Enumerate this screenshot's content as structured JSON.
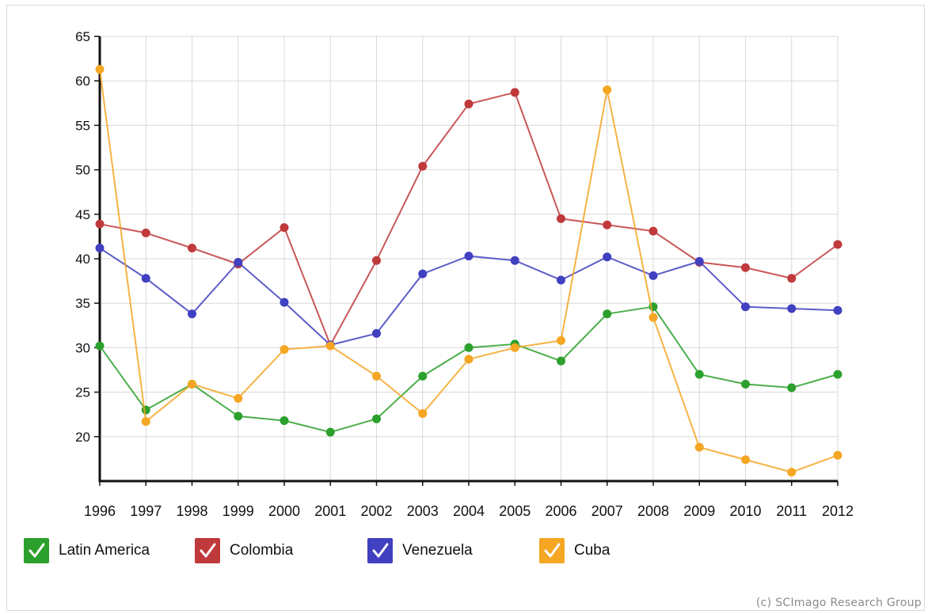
{
  "chart_data": {
    "type": "line",
    "x": [
      "1996",
      "1997",
      "1998",
      "1999",
      "2000",
      "2001",
      "2002",
      "2003",
      "2004",
      "2005",
      "2006",
      "2007",
      "2008",
      "2009",
      "2010",
      "2011",
      "2012"
    ],
    "ylim": [
      15,
      65
    ],
    "yticks": [
      20,
      25,
      30,
      35,
      40,
      45,
      50,
      55,
      60,
      65
    ],
    "grid": true,
    "legend_placement": "bottom",
    "series": [
      {
        "name": "Latin America",
        "color": "#2ca02c",
        "values": [
          30.2,
          23.0,
          25.9,
          22.3,
          21.8,
          20.5,
          22.0,
          26.8,
          30.0,
          30.4,
          28.5,
          33.8,
          34.6,
          27.0,
          25.9,
          25.5,
          27.0
        ]
      },
      {
        "name": "Colombia",
        "color": "#c0393b",
        "values": [
          43.9,
          42.9,
          41.2,
          39.4,
          43.5,
          30.3,
          39.8,
          50.4,
          57.4,
          58.7,
          44.5,
          43.8,
          43.1,
          39.6,
          39.0,
          37.8,
          41.6
        ]
      },
      {
        "name": "Venezuela",
        "color": "#4040c0",
        "values": [
          41.2,
          37.8,
          33.8,
          39.6,
          35.1,
          30.3,
          31.6,
          38.3,
          40.3,
          39.8,
          37.6,
          40.2,
          38.1,
          39.7,
          34.6,
          34.4,
          34.2
        ]
      },
      {
        "name": "Cuba",
        "color": "#f5a623",
        "values": [
          61.3,
          21.7,
          25.9,
          24.3,
          29.8,
          30.2,
          26.8,
          22.6,
          28.7,
          30.0,
          30.8,
          59.0,
          33.4,
          18.8,
          17.4,
          16.0,
          17.9
        ]
      }
    ]
  },
  "legend": [
    {
      "label": "Latin America",
      "color": "#2ca02c"
    },
    {
      "label": "Colombia",
      "color": "#c0393b"
    },
    {
      "label": "Venezuela",
      "color": "#4040c0"
    },
    {
      "label": "Cuba",
      "color": "#f5a623"
    }
  ],
  "credit": "(c) SCImago Research Group"
}
